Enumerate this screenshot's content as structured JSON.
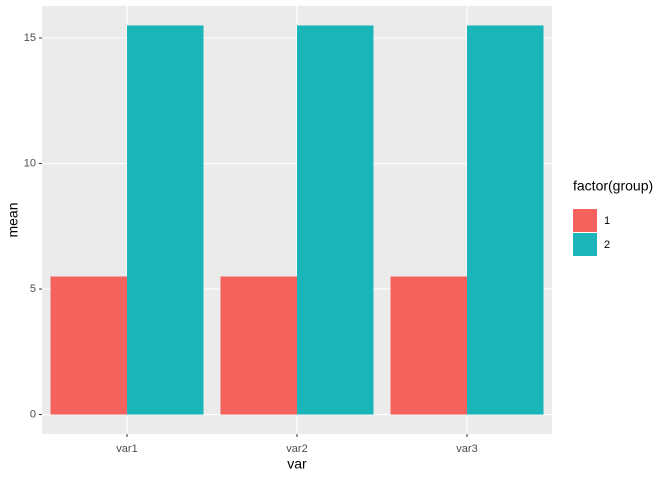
{
  "chart_data": {
    "type": "bar",
    "x_label": "var",
    "y_label": "mean",
    "categories": [
      "var1",
      "var2",
      "var3"
    ],
    "series": [
      {
        "name": "1",
        "color": "#F4625E",
        "values": [
          5.5,
          5.5,
          5.5
        ]
      },
      {
        "name": "2",
        "color": "#1AB5B8",
        "values": [
          15.5,
          15.5,
          15.5
        ]
      }
    ],
    "legend_title": "factor(group)",
    "legend_position": "right",
    "ylim": [
      -0.775,
      16.275
    ],
    "yticks": [
      0,
      5,
      10,
      15
    ],
    "grid": true
  }
}
